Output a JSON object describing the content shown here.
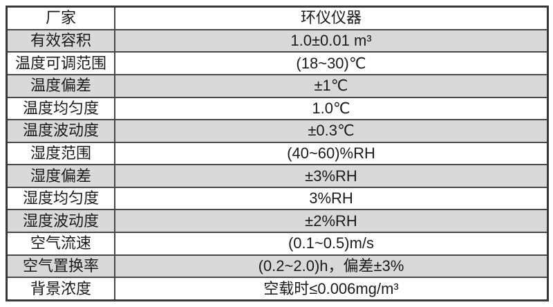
{
  "page": {
    "background_color": "#ffffff",
    "description": "product specification table"
  },
  "table": {
    "stripe_color": "#d9d9d9",
    "border_outer_color": "#383838",
    "border_inner_color": "#474747",
    "text_color": "#1a1a1a",
    "header_row": {
      "label": "厂家",
      "value": "环仪仪器"
    },
    "rows": [
      {
        "label": "厂家",
        "value": "环仪仪器"
      },
      {
        "label": "有效容积",
        "value": "1.0±0.01 m³"
      },
      {
        "label": "温度可调范围",
        "value": "(18~30)℃"
      },
      {
        "label": "温度偏差",
        "value": "±1℃"
      },
      {
        "label": "温度均匀度",
        "value": "1.0℃"
      },
      {
        "label": "温度波动度",
        "value": "±0.3℃"
      },
      {
        "label": "湿度范围",
        "value": "(40~60)%RH"
      },
      {
        "label": "湿度偏差",
        "value": "±3%RH"
      },
      {
        "label": "湿度均匀度",
        "value": "3%RH"
      },
      {
        "label": "湿度波动度",
        "value": "±2%RH"
      },
      {
        "label": "空气流速",
        "value": "(0.1~0.5)m/s"
      },
      {
        "label": "空气置换率",
        "value": "(0.2~2.0)h，偏差±3%"
      },
      {
        "label": "背景浓度",
        "value": "空载时≤0.006mg/m³"
      }
    ]
  }
}
